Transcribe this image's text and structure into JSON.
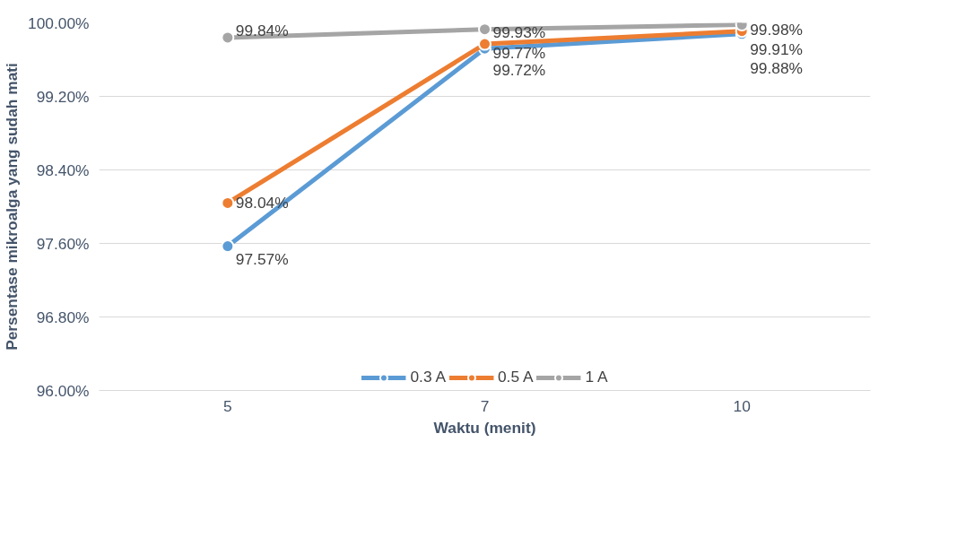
{
  "chart_data": {
    "type": "line",
    "xlabel": "Waktu (menit)",
    "ylabel": "Persentase mikroalga yang sudah mati",
    "categories": [
      "5",
      "7",
      "10"
    ],
    "series": [
      {
        "name": "0.3 A",
        "color": "#5b9bd5",
        "values": [
          97.57,
          99.72,
          99.88
        ],
        "value_labels": [
          "97.57%",
          "99.72%",
          "99.88%"
        ]
      },
      {
        "name": "0.5 A",
        "color": "#ed7d31",
        "values": [
          98.04,
          99.77,
          99.91
        ],
        "value_labels": [
          "98.04%",
          "99.77%",
          "99.91%"
        ]
      },
      {
        "name": "1 A",
        "color": "#a5a5a5",
        "values": [
          99.84,
          99.93,
          99.98
        ],
        "value_labels": [
          "99.84%",
          "99.93%",
          "99.98%"
        ]
      }
    ],
    "ylim": [
      96,
      100
    ],
    "yticks": [
      {
        "value": 96,
        "label": "96.00%"
      },
      {
        "value": 96.8,
        "label": "96.80%"
      },
      {
        "value": 97.6,
        "label": "97.60%"
      },
      {
        "value": 98.4,
        "label": "98.40%"
      },
      {
        "value": 99.2,
        "label": "99.20%"
      },
      {
        "value": 100,
        "label": "100.00%"
      }
    ],
    "grid": "y",
    "legend": "bottom",
    "marker": "circle",
    "line_style": "solid"
  }
}
